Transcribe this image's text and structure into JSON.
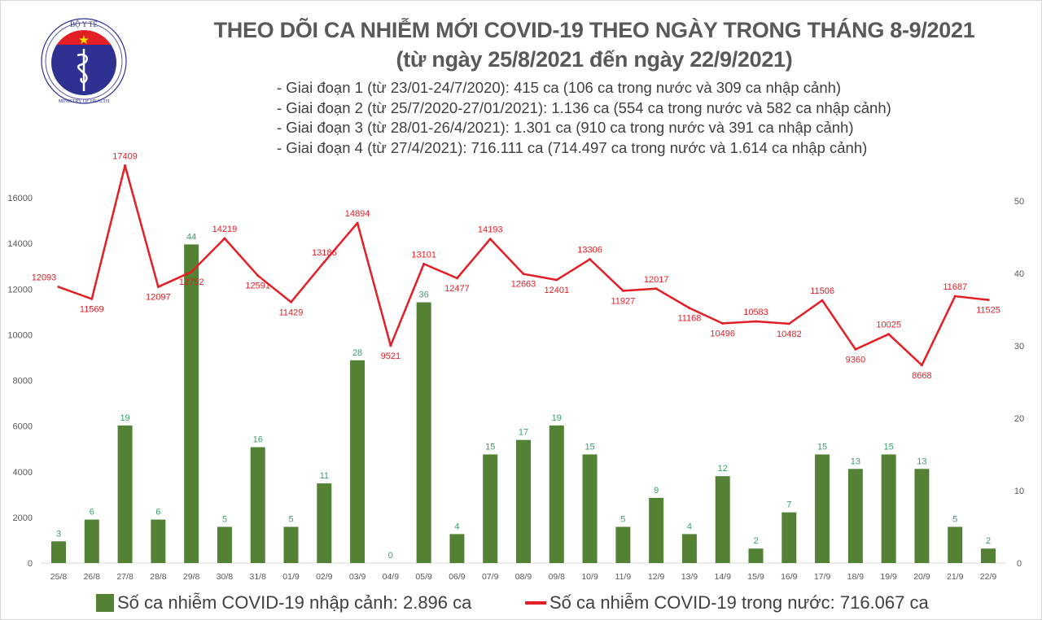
{
  "logo": {
    "top_text": "BỘ Y TẾ",
    "bottom_text": "MINISTRY OF HEALTH"
  },
  "header": {
    "title": "THEO DÕI CA NHIỄM MỚI COVID-19 THEO NGÀY TRONG THÁNG 8-9/2021",
    "subtitle": "(từ ngày 25/8/2021 đến ngày 22/9/2021)",
    "phases": [
      "- Giai đoạn 1 (từ 23/01-24/7/2020): 415 ca (106 ca trong nước và 309 ca nhập cảnh)",
      "- Giai đoạn 2 (từ 25/7/2020-27/01/2021): 1.136 ca (554 ca trong nước và 582 ca nhập cảnh)",
      "- Giai đoạn 3 (từ 28/01-26/4/2021): 1.301 ca (910 ca trong nước và 391 ca nhập cảnh)",
      "- Giai đoạn 4 (từ 27/4/2021): 716.111 ca (714.497 ca trong nước và 1.614 ca nhập cảnh)"
    ]
  },
  "chart_data": {
    "type": "bar+line",
    "categories": [
      "25/8",
      "26/8",
      "27/8",
      "28/8",
      "29/8",
      "30/8",
      "31/8",
      "01/9",
      "02/9",
      "03/9",
      "04/9",
      "05/9",
      "06/9",
      "07/9",
      "08/9",
      "09/8",
      "10/9",
      "11/9",
      "12/9",
      "13/9",
      "14/9",
      "15/9",
      "16/9",
      "17/9",
      "18/9",
      "19/9",
      "20/9",
      "21/9",
      "22/9"
    ],
    "series": [
      {
        "name": "Số ca nhiễm COVID-19 nhập cảnh: 2.896 ca",
        "type": "bar",
        "axis": "right",
        "color": "#548235",
        "values": [
          3,
          6,
          19,
          6,
          44,
          5,
          16,
          5,
          11,
          28,
          0,
          36,
          4,
          15,
          17,
          19,
          15,
          5,
          9,
          4,
          12,
          2,
          7,
          15,
          13,
          15,
          13,
          5,
          2
        ]
      },
      {
        "name": "Số ca nhiễm COVID-19 trong nước: 716.067 ca",
        "type": "line",
        "axis": "left",
        "color": "#e31e24",
        "values": [
          12093,
          11569,
          17409,
          12097,
          12752,
          14219,
          12591,
          11429,
          13186,
          14894,
          9521,
          13101,
          12477,
          14193,
          12663,
          12401,
          13306,
          11927,
          12017,
          11168,
          10496,
          10583,
          10482,
          11506,
          9360,
          10025,
          8668,
          11687,
          11525
        ]
      }
    ],
    "left_axis": {
      "ticks": [
        0,
        2000,
        4000,
        6000,
        8000,
        10000,
        12000,
        14000,
        16000
      ]
    },
    "right_axis": {
      "ticks": [
        0,
        10,
        20,
        30,
        40,
        50
      ]
    },
    "grid": false,
    "legend_position": "bottom"
  }
}
